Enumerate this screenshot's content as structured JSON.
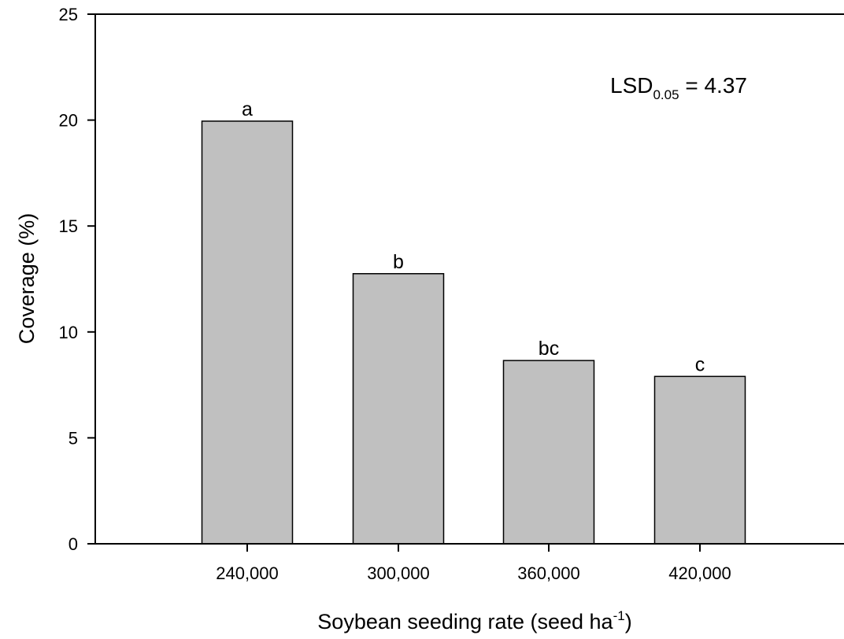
{
  "chart_data": {
    "type": "bar",
    "categories": [
      "240,000",
      "300,000",
      "360,000",
      "420,000"
    ],
    "values": [
      19.95,
      12.75,
      8.65,
      7.9
    ],
    "significance_letters": [
      "a",
      "b",
      "bc",
      "c"
    ],
    "xlabel": {
      "main": "Soybean seeding rate (seed ha",
      "superscript": "-1",
      "close": ")"
    },
    "ylabel": "Coverage (%)",
    "ylim": [
      0,
      25
    ],
    "yticks": [
      "0",
      "5",
      "10",
      "15",
      "20",
      "25"
    ],
    "annotation": {
      "prefix": "LSD",
      "subscript": "0.05",
      "suffix": " = 4.37"
    },
    "bar_color": "#c0c0c0",
    "bar_edge_color": "#000000",
    "grid": false,
    "legend": "none"
  }
}
